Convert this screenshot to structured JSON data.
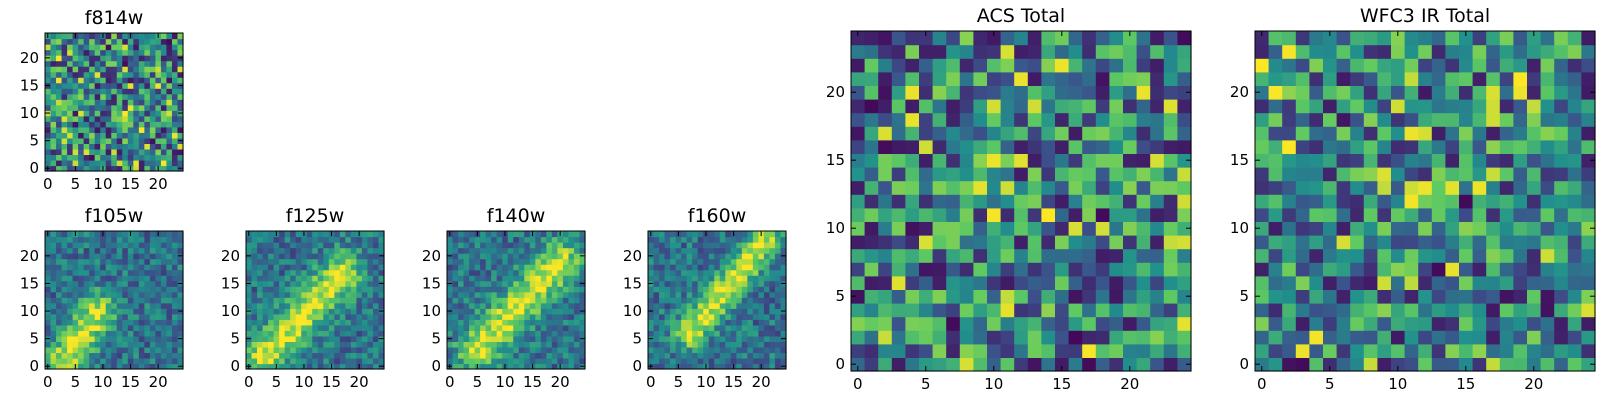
{
  "chart_data": [
    {
      "type": "heatmap",
      "title": "f814w",
      "pattern": "noise",
      "seed": 11,
      "grid_size": 25,
      "xlim": [
        0,
        25
      ],
      "ylim": [
        0,
        25
      ],
      "x_ticks": [
        0,
        5,
        10,
        15,
        20
      ],
      "y_ticks": [
        0,
        5,
        10,
        15,
        20
      ],
      "colormap": "viridis"
    },
    {
      "type": "heatmap",
      "title": "f105w",
      "pattern": "diagonal",
      "seed": 23,
      "grid_size": 25,
      "xlim": [
        0,
        25
      ],
      "ylim": [
        0,
        25
      ],
      "x_ticks": [
        0,
        5,
        10,
        15,
        20
      ],
      "y_ticks": [
        0,
        5,
        10,
        15,
        20
      ],
      "colormap": "viridis",
      "feature": {
        "start": [
          3,
          1
        ],
        "end": [
          9,
          10
        ],
        "width": 2.4
      }
    },
    {
      "type": "heatmap",
      "title": "f125w",
      "pattern": "diagonal",
      "seed": 37,
      "grid_size": 25,
      "xlim": [
        0,
        25
      ],
      "ylim": [
        0,
        25
      ],
      "x_ticks": [
        0,
        5,
        10,
        15,
        20
      ],
      "y_ticks": [
        0,
        5,
        10,
        15,
        20
      ],
      "colormap": "viridis",
      "feature": {
        "start": [
          3,
          2
        ],
        "end": [
          17,
          17
        ],
        "width": 2.6
      }
    },
    {
      "type": "heatmap",
      "title": "f140w",
      "pattern": "diagonal",
      "seed": 41,
      "grid_size": 25,
      "xlim": [
        0,
        25
      ],
      "ylim": [
        0,
        25
      ],
      "x_ticks": [
        0,
        5,
        10,
        15,
        20
      ],
      "y_ticks": [
        0,
        5,
        10,
        15,
        20
      ],
      "colormap": "viridis",
      "feature": {
        "start": [
          5,
          3
        ],
        "end": [
          20,
          19
        ],
        "width": 2.6
      }
    },
    {
      "type": "heatmap",
      "title": "f160w",
      "pattern": "diagonal",
      "seed": 53,
      "grid_size": 25,
      "xlim": [
        0,
        25
      ],
      "ylim": [
        0,
        25
      ],
      "x_ticks": [
        0,
        5,
        10,
        15,
        20
      ],
      "y_ticks": [
        0,
        5,
        10,
        15,
        20
      ],
      "colormap": "viridis",
      "feature": {
        "start": [
          7,
          6
        ],
        "end": [
          21,
          23
        ],
        "width": 2.0
      }
    },
    {
      "type": "heatmap",
      "title": "ACS Total",
      "pattern": "noise",
      "seed": 67,
      "grid_size": 25,
      "xlim": [
        0,
        25
      ],
      "ylim": [
        0,
        25
      ],
      "x_ticks": [
        0,
        5,
        10,
        15,
        20
      ],
      "y_ticks": [
        0,
        5,
        10,
        15,
        20
      ],
      "colormap": "viridis"
    },
    {
      "type": "heatmap",
      "title": "WFC3 IR Total",
      "pattern": "noise",
      "seed": 79,
      "grid_size": 25,
      "xlim": [
        0,
        25
      ],
      "ylim": [
        0,
        25
      ],
      "x_ticks": [
        0,
        5,
        10,
        15,
        20
      ],
      "y_ticks": [
        0,
        5,
        10,
        15,
        20
      ],
      "colormap": "viridis"
    }
  ],
  "colors": {
    "axes_frame": "#000000",
    "background": "#ffffff",
    "viridis_stops": [
      "#440154",
      "#3b528b",
      "#21918c",
      "#5ec962",
      "#fde725"
    ]
  }
}
